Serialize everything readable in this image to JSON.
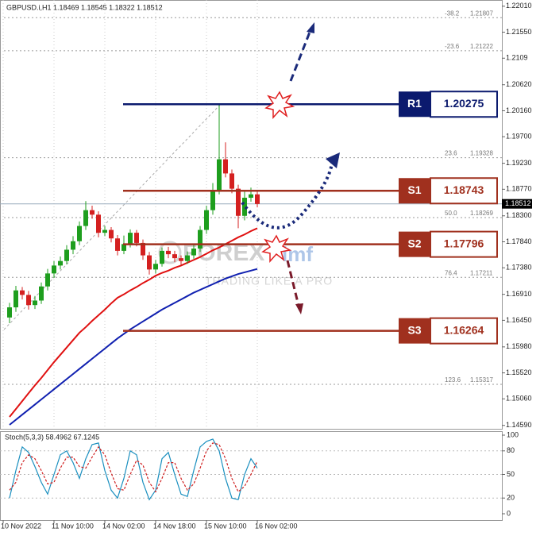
{
  "chart_data": [
    {
      "type": "candlestick",
      "title": "GBPUSD.i,H1  1.18469 1.18545 1.18322 1.18512",
      "x": [
        2,
        4,
        6,
        8,
        10,
        12,
        14,
        16,
        18,
        20,
        22,
        24,
        26,
        28,
        30,
        32,
        34,
        36,
        38,
        40,
        42,
        44,
        46,
        48,
        50,
        52,
        54,
        56,
        58,
        60,
        62,
        64,
        66,
        68,
        70,
        72,
        74,
        76,
        78,
        80
      ],
      "open": [
        1.165,
        1.1668,
        1.1698,
        1.169,
        1.1672,
        1.168,
        1.1705,
        1.1728,
        1.1742,
        1.175,
        1.177,
        1.1785,
        1.1812,
        1.184,
        1.1832,
        1.18,
        1.1805,
        1.179,
        1.1768,
        1.178,
        1.18,
        1.1782,
        1.176,
        1.1735,
        1.1745,
        1.1768,
        1.1762,
        1.1755,
        1.175,
        1.176,
        1.1772,
        1.1805,
        1.184,
        1.1875,
        1.193,
        1.1905,
        1.1878,
        1.183,
        1.1862,
        1.1868
      ],
      "high": [
        1.1676,
        1.1706,
        1.1704,
        1.1697,
        1.1688,
        1.1712,
        1.1736,
        1.175,
        1.1758,
        1.1778,
        1.1794,
        1.182,
        1.1856,
        1.1848,
        1.1838,
        1.1812,
        1.181,
        1.1796,
        1.1795,
        1.1806,
        1.1805,
        1.1788,
        1.1766,
        1.1752,
        1.1774,
        1.1775,
        1.1768,
        1.176,
        1.1767,
        1.1779,
        1.1812,
        1.1848,
        1.1888,
        1.2027,
        1.196,
        1.1912,
        1.1885,
        1.1875,
        1.188,
        1.1874
      ],
      "low": [
        1.164,
        1.166,
        1.1682,
        1.1664,
        1.1665,
        1.1674,
        1.1698,
        1.172,
        1.1735,
        1.1744,
        1.1762,
        1.1778,
        1.1805,
        1.1825,
        1.1792,
        1.1794,
        1.1783,
        1.176,
        1.1762,
        1.1774,
        1.1776,
        1.1752,
        1.1726,
        1.1728,
        1.174,
        1.1755,
        1.1748,
        1.1742,
        1.1745,
        1.1754,
        1.1766,
        1.1798,
        1.1832,
        1.1868,
        1.1898,
        1.187,
        1.1808,
        1.1822,
        1.1855,
        1.1845
      ],
      "close": [
        1.1668,
        1.1698,
        1.169,
        1.1672,
        1.168,
        1.1705,
        1.1728,
        1.1742,
        1.175,
        1.177,
        1.1785,
        1.1812,
        1.184,
        1.1832,
        1.18,
        1.1805,
        1.179,
        1.1768,
        1.178,
        1.18,
        1.1782,
        1.176,
        1.1735,
        1.1745,
        1.1768,
        1.1762,
        1.1755,
        1.175,
        1.176,
        1.1772,
        1.1805,
        1.184,
        1.1875,
        1.193,
        1.1905,
        1.1878,
        1.183,
        1.1862,
        1.1868,
        1.1851
      ],
      "up_color": "#1e9e1e",
      "down_color": "#d42020",
      "moving_averages": [
        {
          "color": "#e01010",
          "values": [
            1.1474,
            1.1488,
            1.1502,
            1.1516,
            1.153,
            1.1543,
            1.1557,
            1.1571,
            1.1584,
            1.1597,
            1.161,
            1.1623,
            1.1633,
            1.1644,
            1.1654,
            1.1664,
            1.1675,
            1.1685,
            1.1691,
            1.1698,
            1.1704,
            1.1711,
            1.1717,
            1.1724,
            1.1729,
            1.1733,
            1.1738,
            1.1742,
            1.1747,
            1.1752,
            1.1757,
            1.1763,
            1.1769,
            1.1774,
            1.178,
            1.1786,
            1.1792,
            1.1797,
            1.1803,
            1.1808
          ]
        },
        {
          "color": "#1020b0",
          "values": [
            1.146,
            1.1469,
            1.1478,
            1.1487,
            1.1496,
            1.1505,
            1.1514,
            1.1523,
            1.1532,
            1.1541,
            1.155,
            1.1559,
            1.1568,
            1.1577,
            1.1586,
            1.1595,
            1.1604,
            1.1613,
            1.1621,
            1.1629,
            1.1636,
            1.1643,
            1.165,
            1.1657,
            1.1664,
            1.167,
            1.1676,
            1.1682,
            1.1688,
            1.1694,
            1.1699,
            1.1704,
            1.1709,
            1.1714,
            1.1719,
            1.1723,
            1.1727,
            1.173,
            1.1733,
            1.1736
          ]
        }
      ],
      "levels": [
        {
          "label": "R1",
          "value": 1.20275,
          "color": "#0b1a6e"
        },
        {
          "label": "S1",
          "value": 1.18743,
          "color": "#a0301e"
        },
        {
          "label": "S2",
          "value": 1.17796,
          "color": "#a0301e"
        },
        {
          "label": "S3",
          "value": 1.16264,
          "color": "#a0301e"
        }
      ],
      "fib_levels": [
        {
          "label": "-38.2",
          "value": 1.21807
        },
        {
          "label": "-23.6",
          "value": 1.21222
        },
        {
          "label": "23.6",
          "value": 1.19328
        },
        {
          "label": "50.0",
          "value": 1.18269
        },
        {
          "label": "76.4",
          "value": 1.17211
        },
        {
          "label": "123.6",
          "value": 1.15317
        }
      ],
      "current_price": 1.18512,
      "watermark": {
        "brand": "FOREX",
        "suffix": "imf",
        "tagline": "TRADING LIKE A PRO"
      },
      "xlim": [
        -1,
        157
      ],
      "xticks": [
        {
          "value": 0,
          "label": "10 Nov 2022"
        },
        {
          "value": 16,
          "label": "11 Nov 10:00"
        },
        {
          "value": 32,
          "label": "14 Nov 02:00"
        },
        {
          "value": 48,
          "label": "14 Nov 18:00"
        },
        {
          "value": 64,
          "label": "15 Nov 10:00"
        },
        {
          "value": 80,
          "label": "16 Nov 02:00"
        }
      ],
      "ylim": [
        1.1453,
        1.2212
      ],
      "yticks": [
        {
          "value": 1.2201,
          "label": "1.22010"
        },
        {
          "value": 1.2155,
          "label": "1.21550"
        },
        1.2109,
        {
          "value": 1.2062,
          "label": "1.20620"
        },
        {
          "value": 1.2016,
          "label": "1.20160"
        },
        {
          "value": 1.197,
          "label": "1.19700"
        },
        {
          "value": 1.1923,
          "label": "1.19230"
        },
        {
          "value": 1.1877,
          "label": "1.18770"
        },
        {
          "value": 1.183,
          "label": "1.18300"
        },
        {
          "value": 1.1784,
          "label": "1.17840"
        },
        {
          "value": 1.1738,
          "label": "1.17380"
        },
        {
          "value": 1.1691,
          "label": "1.16910"
        },
        {
          "value": 1.1645,
          "label": "1.16450"
        },
        {
          "value": 1.1598,
          "label": "1.15980"
        },
        {
          "value": 1.1552,
          "label": "1.15520"
        },
        {
          "value": 1.1506,
          "label": "1.15060"
        },
        {
          "value": 1.1459,
          "label": "1.14590"
        }
      ]
    },
    {
      "type": "line",
      "title": "Stoch(5,3,3) 58.4962 67.1245",
      "x": [
        2,
        4,
        6,
        8,
        10,
        12,
        14,
        16,
        18,
        20,
        22,
        24,
        26,
        28,
        30,
        32,
        34,
        36,
        38,
        40,
        42,
        44,
        46,
        48,
        50,
        52,
        54,
        56,
        58,
        60,
        62,
        64,
        66,
        68,
        70,
        72,
        74,
        76,
        78,
        80
      ],
      "series": [
        {
          "color": "#1a8fbf",
          "values": [
            20,
            55,
            85,
            78,
            60,
            40,
            25,
            50,
            75,
            80,
            65,
            45,
            70,
            88,
            90,
            55,
            30,
            20,
            45,
            80,
            75,
            40,
            18,
            30,
            70,
            78,
            50,
            25,
            22,
            55,
            85,
            92,
            95,
            80,
            45,
            20,
            18,
            50,
            70,
            58
          ]
        },
        {
          "color": "#d02020",
          "dashed": true,
          "values": [
            30,
            40,
            65,
            75,
            70,
            55,
            38,
            40,
            58,
            72,
            72,
            60,
            58,
            72,
            85,
            75,
            52,
            32,
            30,
            50,
            68,
            62,
            40,
            28,
            45,
            65,
            65,
            45,
            30,
            38,
            58,
            80,
            90,
            88,
            70,
            45,
            28,
            35,
            50,
            67
          ]
        }
      ],
      "xlim": [
        -1,
        157
      ],
      "ylim": [
        0,
        100
      ],
      "yticks": [
        0,
        20,
        50,
        80,
        100
      ],
      "grid_ticks": [
        20,
        50,
        80
      ]
    }
  ]
}
